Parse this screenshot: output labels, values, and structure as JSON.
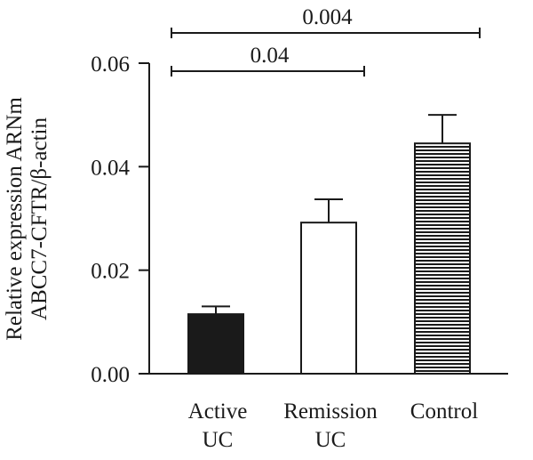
{
  "chart_data": {
    "type": "bar",
    "categories": [
      [
        "Active",
        "UC"
      ],
      [
        "Remission",
        "UC"
      ],
      [
        "Control"
      ]
    ],
    "values": [
      0.0115,
      0.0292,
      0.0445
    ],
    "errors": [
      0.0015,
      0.0045,
      0.0055
    ],
    "bar_styles": [
      "solid-black",
      "white",
      "horizontal-stripes"
    ],
    "ylabel": [
      "Relative expression ARNm",
      "ABCC7-CFTR/β-actin"
    ],
    "ylim": [
      0,
      0.06
    ],
    "yticks": [
      "0.00",
      "0.02",
      "0.04",
      "0.06"
    ],
    "ytick_values": [
      0,
      0.02,
      0.04,
      0.06
    ],
    "grid": false,
    "significance": [
      {
        "from": 0,
        "to": 1,
        "label": "0.04",
        "level": 1
      },
      {
        "from": 0,
        "to": 2,
        "label": "0.004",
        "level": 2
      }
    ]
  }
}
